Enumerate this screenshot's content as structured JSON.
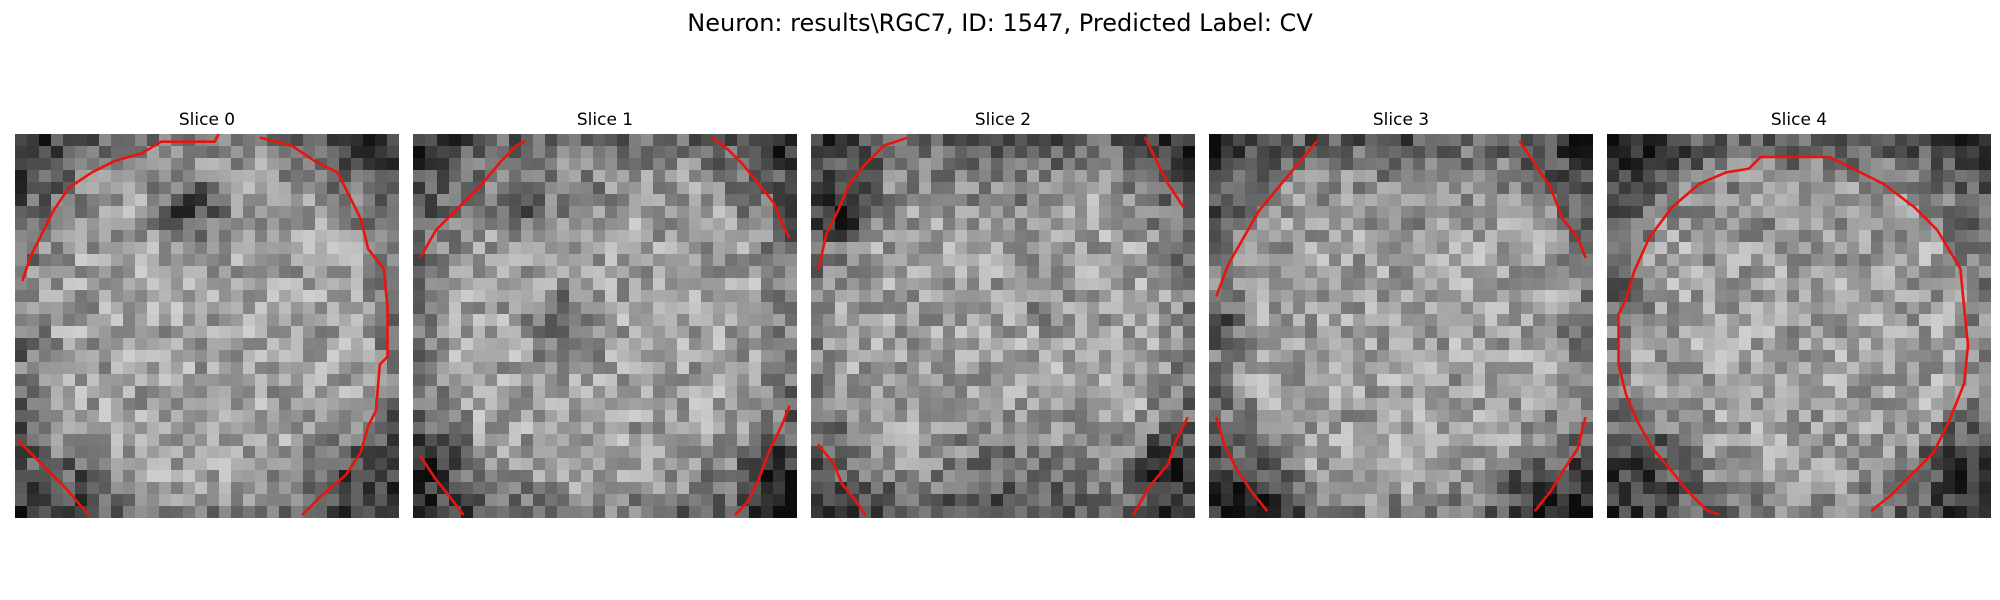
{
  "figure": {
    "title": "Neuron: results\\RGC7, ID: 1547, Predicted Label: CV"
  },
  "colors": {
    "contour": "#e8150e",
    "background": "#ffffff"
  },
  "slices": [
    {
      "title": "Slice 0",
      "dark_spots": [
        [
          0.45,
          0.2,
          0.13,
          0.6
        ],
        [
          0.05,
          0.55,
          0.08,
          0.25
        ],
        [
          0.2,
          0.92,
          0.12,
          0.2
        ],
        [
          0.85,
          0.9,
          0.14,
          0.25
        ]
      ],
      "contours": [
        [
          [
            0.02,
            0.38
          ],
          [
            0.04,
            0.32
          ],
          [
            0.07,
            0.26
          ],
          [
            0.1,
            0.2
          ],
          [
            0.14,
            0.14
          ],
          [
            0.2,
            0.1
          ],
          [
            0.26,
            0.07
          ],
          [
            0.33,
            0.05
          ],
          [
            0.38,
            0.02
          ],
          [
            0.52,
            0.02
          ],
          [
            0.53,
            0.0
          ]
        ],
        [
          [
            0.64,
            0.01
          ],
          [
            0.72,
            0.03
          ],
          [
            0.78,
            0.07
          ],
          [
            0.84,
            0.1
          ],
          [
            0.87,
            0.16
          ],
          [
            0.9,
            0.22
          ],
          [
            0.92,
            0.3
          ],
          [
            0.96,
            0.35
          ],
          [
            0.97,
            0.45
          ],
          [
            0.97,
            0.58
          ],
          [
            0.95,
            0.6
          ],
          [
            0.94,
            0.72
          ],
          [
            0.92,
            0.76
          ],
          [
            0.9,
            0.83
          ],
          [
            0.86,
            0.89
          ],
          [
            0.8,
            0.94
          ],
          [
            0.75,
            0.99
          ]
        ],
        [
          [
            0.01,
            0.8
          ],
          [
            0.07,
            0.86
          ],
          [
            0.13,
            0.92
          ],
          [
            0.19,
            0.99
          ]
        ]
      ]
    },
    {
      "title": "Slice 1",
      "dark_spots": [
        [
          0.3,
          0.2,
          0.14,
          0.4
        ],
        [
          0.4,
          0.5,
          0.14,
          0.45
        ],
        [
          0.05,
          0.85,
          0.12,
          0.3
        ],
        [
          0.95,
          0.9,
          0.12,
          0.3
        ],
        [
          0.5,
          0.05,
          0.2,
          0.25
        ]
      ],
      "contours": [
        [
          [
            0.02,
            0.32
          ],
          [
            0.06,
            0.25
          ],
          [
            0.12,
            0.19
          ],
          [
            0.18,
            0.13
          ],
          [
            0.23,
            0.07
          ],
          [
            0.27,
            0.03
          ],
          [
            0.29,
            0.02
          ]
        ],
        [
          [
            0.78,
            0.01
          ],
          [
            0.82,
            0.04
          ],
          [
            0.86,
            0.08
          ],
          [
            0.9,
            0.13
          ],
          [
            0.94,
            0.18
          ],
          [
            0.96,
            0.23
          ],
          [
            0.98,
            0.27
          ]
        ],
        [
          [
            0.02,
            0.84
          ],
          [
            0.06,
            0.9
          ],
          [
            0.1,
            0.95
          ],
          [
            0.13,
            0.99
          ]
        ],
        [
          [
            0.98,
            0.71
          ],
          [
            0.96,
            0.76
          ],
          [
            0.93,
            0.82
          ],
          [
            0.9,
            0.9
          ],
          [
            0.87,
            0.96
          ],
          [
            0.84,
            0.99
          ]
        ]
      ]
    },
    {
      "title": "Slice 2",
      "dark_spots": [
        [
          0.1,
          0.2,
          0.12,
          0.5
        ],
        [
          0.5,
          0.95,
          0.3,
          0.35
        ],
        [
          0.92,
          0.85,
          0.1,
          0.4
        ],
        [
          0.5,
          0.03,
          0.3,
          0.3
        ],
        [
          0.6,
          0.4,
          0.12,
          0.25
        ]
      ],
      "contours": [
        [
          [
            0.02,
            0.35
          ],
          [
            0.04,
            0.26
          ],
          [
            0.07,
            0.2
          ],
          [
            0.1,
            0.13
          ],
          [
            0.14,
            0.08
          ],
          [
            0.19,
            0.03
          ],
          [
            0.25,
            0.01
          ]
        ],
        [
          [
            0.87,
            0.01
          ],
          [
            0.9,
            0.07
          ],
          [
            0.93,
            0.13
          ],
          [
            0.97,
            0.19
          ]
        ],
        [
          [
            0.02,
            0.81
          ],
          [
            0.06,
            0.86
          ],
          [
            0.08,
            0.91
          ],
          [
            0.12,
            0.96
          ],
          [
            0.14,
            0.99
          ]
        ],
        [
          [
            0.98,
            0.74
          ],
          [
            0.95,
            0.8
          ],
          [
            0.93,
            0.86
          ],
          [
            0.88,
            0.92
          ],
          [
            0.84,
            0.99
          ]
        ]
      ]
    },
    {
      "title": "Slice 3",
      "dark_spots": [
        [
          0.5,
          0.02,
          0.3,
          0.3
        ],
        [
          0.05,
          0.5,
          0.1,
          0.35
        ],
        [
          0.15,
          0.95,
          0.15,
          0.3
        ],
        [
          0.85,
          0.95,
          0.15,
          0.3
        ],
        [
          0.97,
          0.5,
          0.08,
          0.3
        ]
      ],
      "contours": [
        [
          [
            0.02,
            0.42
          ],
          [
            0.05,
            0.34
          ],
          [
            0.09,
            0.27
          ],
          [
            0.13,
            0.2
          ],
          [
            0.18,
            0.14
          ],
          [
            0.23,
            0.08
          ],
          [
            0.28,
            0.02
          ]
        ],
        [
          [
            0.81,
            0.02
          ],
          [
            0.85,
            0.08
          ],
          [
            0.89,
            0.14
          ],
          [
            0.92,
            0.22
          ],
          [
            0.96,
            0.27
          ],
          [
            0.98,
            0.32
          ]
        ],
        [
          [
            0.02,
            0.74
          ],
          [
            0.04,
            0.81
          ],
          [
            0.07,
            0.87
          ],
          [
            0.11,
            0.93
          ],
          [
            0.15,
            0.98
          ]
        ],
        [
          [
            0.98,
            0.74
          ],
          [
            0.96,
            0.82
          ],
          [
            0.92,
            0.88
          ],
          [
            0.89,
            0.93
          ],
          [
            0.85,
            0.98
          ]
        ]
      ]
    },
    {
      "title": "Slice 4",
      "dark_spots": [
        [
          0.05,
          0.4,
          0.1,
          0.4
        ],
        [
          0.15,
          0.85,
          0.15,
          0.3
        ],
        [
          0.9,
          0.85,
          0.15,
          0.3
        ],
        [
          0.5,
          0.02,
          0.4,
          0.2
        ],
        [
          0.1,
          0.05,
          0.15,
          0.25
        ]
      ],
      "contours": [
        [
          [
            0.31,
            0.1
          ],
          [
            0.37,
            0.09
          ],
          [
            0.4,
            0.06
          ],
          [
            0.53,
            0.06
          ],
          [
            0.58,
            0.06
          ],
          [
            0.66,
            0.1
          ],
          [
            0.72,
            0.13
          ],
          [
            0.8,
            0.19
          ],
          [
            0.86,
            0.25
          ],
          [
            0.92,
            0.35
          ],
          [
            0.93,
            0.45
          ],
          [
            0.94,
            0.55
          ],
          [
            0.93,
            0.65
          ],
          [
            0.89,
            0.75
          ],
          [
            0.85,
            0.83
          ],
          [
            0.79,
            0.89
          ],
          [
            0.74,
            0.94
          ],
          [
            0.69,
            0.98
          ]
        ],
        [
          [
            0.31,
            0.1
          ],
          [
            0.24,
            0.13
          ],
          [
            0.17,
            0.19
          ],
          [
            0.11,
            0.27
          ],
          [
            0.07,
            0.36
          ],
          [
            0.05,
            0.43
          ],
          [
            0.03,
            0.47
          ],
          [
            0.03,
            0.6
          ],
          [
            0.05,
            0.68
          ],
          [
            0.08,
            0.75
          ],
          [
            0.12,
            0.82
          ],
          [
            0.17,
            0.88
          ],
          [
            0.21,
            0.93
          ],
          [
            0.26,
            0.98
          ],
          [
            0.29,
            0.99
          ]
        ]
      ]
    }
  ]
}
